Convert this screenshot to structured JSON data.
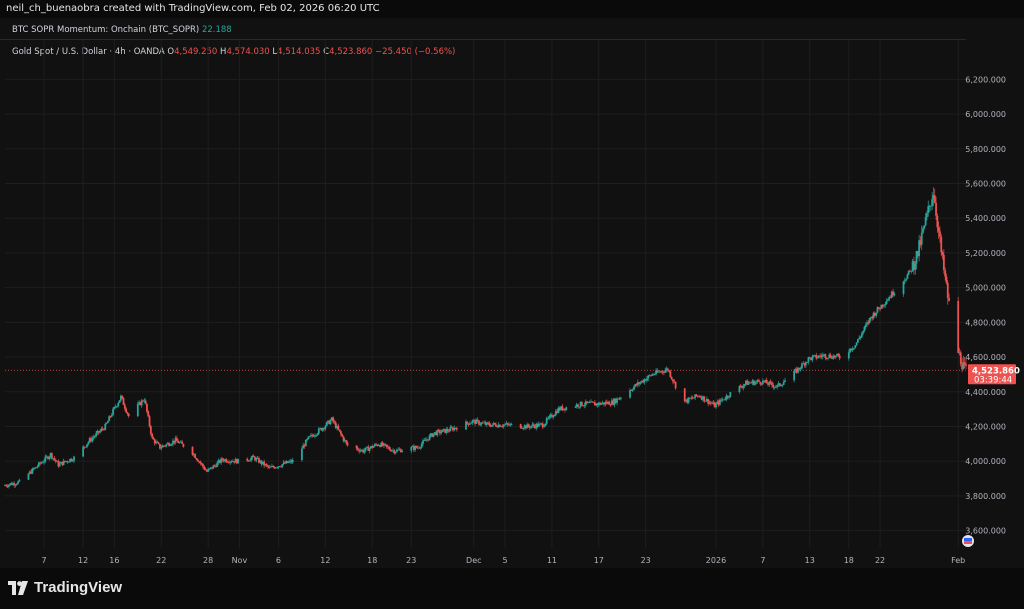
{
  "header": {
    "attribution": "neil_ch_buenaobra created with TradingView.com, Feb 02, 2026 06:20 UTC"
  },
  "indicator": {
    "name": "BTC SOPR Momentum: Onchain (BTC_SOPR)",
    "value": "22.188"
  },
  "symbol": {
    "name": "Gold Spot / U.S. Dollar · 4h · OANDA",
    "open_label": "O",
    "open": "4,549.250",
    "high_label": "H",
    "high": "4,574.030",
    "low_label": "L",
    "low": "4,514.035",
    "close_label": "C",
    "close": "4,523.860",
    "change": "−25.450 (−0.56%)"
  },
  "price_tag": {
    "price": "4,523.860",
    "countdown": "03:39:44"
  },
  "footer": {
    "brand": "TradingView"
  },
  "colors": {
    "up": "#26a69a",
    "down": "#ef5350",
    "background": "#111111",
    "grid": "#1e1e1e"
  },
  "chart_data": {
    "type": "candlestick",
    "interval": "4h",
    "y_range": [
      3500,
      6300
    ],
    "y_ticks": [
      "6,200.000",
      "6,000.000",
      "5,800.000",
      "5,600.000",
      "5,400.000",
      "5,200.000",
      "5,000.000",
      "4,800.000",
      "4,600.000",
      "4,400.000",
      "4,200.000",
      "4,000.000",
      "3,800.000",
      "3,600.000"
    ],
    "y_tick_values": [
      6200,
      6000,
      5800,
      5600,
      5400,
      5200,
      5000,
      4800,
      4600,
      4400,
      4200,
      4000,
      3800,
      3600
    ],
    "x_ticks": [
      "7",
      "12",
      "16",
      "22",
      "28",
      "Nov",
      "6",
      "12",
      "18",
      "23",
      "Dec",
      "5",
      "11",
      "17",
      "23",
      "2026",
      "7",
      "13",
      "18",
      "22",
      "Feb"
    ],
    "x_tick_dates": [
      "2025-10-07",
      "2025-10-12",
      "2025-10-16",
      "2025-10-22",
      "2025-10-28",
      "2025-11-01",
      "2025-11-06",
      "2025-11-12",
      "2025-11-18",
      "2025-11-23",
      "2025-12-01",
      "2025-12-05",
      "2025-12-11",
      "2025-12-17",
      "2025-12-23",
      "2026-01-01",
      "2026-01-07",
      "2026-01-13",
      "2026-01-18",
      "2026-01-22",
      "2026-02-01"
    ],
    "date_range": [
      "2025-10-02",
      "2026-02-02"
    ],
    "last_price": 4523.86,
    "trend": [
      [
        "2025-10-02",
        3860
      ],
      [
        "2025-10-04",
        3880
      ],
      [
        "2025-10-06",
        3960
      ],
      [
        "2025-10-08",
        4040
      ],
      [
        "2025-10-09",
        3980
      ],
      [
        "2025-10-11",
        4020
      ],
      [
        "2025-10-13",
        4120
      ],
      [
        "2025-10-14",
        4160
      ],
      [
        "2025-10-15",
        4200
      ],
      [
        "2025-10-16",
        4290
      ],
      [
        "2025-10-17",
        4370
      ],
      [
        "2025-10-18",
        4260
      ],
      [
        "2025-10-20",
        4360
      ],
      [
        "2025-10-21",
        4130
      ],
      [
        "2025-10-22",
        4080
      ],
      [
        "2025-10-24",
        4120
      ],
      [
        "2025-10-26",
        4060
      ],
      [
        "2025-10-28",
        3940
      ],
      [
        "2025-10-30",
        4010
      ],
      [
        "2025-11-01",
        4000
      ],
      [
        "2025-11-03",
        4020
      ],
      [
        "2025-11-05",
        3960
      ],
      [
        "2025-11-08",
        4000
      ],
      [
        "2025-11-10",
        4130
      ],
      [
        "2025-11-12",
        4200
      ],
      [
        "2025-11-13",
        4240
      ],
      [
        "2025-11-15",
        4090
      ],
      [
        "2025-11-17",
        4060
      ],
      [
        "2025-11-19",
        4100
      ],
      [
        "2025-11-21",
        4060
      ],
      [
        "2025-11-24",
        4080
      ],
      [
        "2025-11-26",
        4160
      ],
      [
        "2025-11-28",
        4180
      ],
      [
        "2025-12-01",
        4230
      ],
      [
        "2025-12-03",
        4210
      ],
      [
        "2025-12-05",
        4210
      ],
      [
        "2025-12-08",
        4200
      ],
      [
        "2025-12-10",
        4210
      ],
      [
        "2025-12-12",
        4300
      ],
      [
        "2025-12-15",
        4330
      ],
      [
        "2025-12-17",
        4330
      ],
      [
        "2025-12-19",
        4340
      ],
      [
        "2025-12-22",
        4440
      ],
      [
        "2025-12-24",
        4500
      ],
      [
        "2025-12-26",
        4530
      ],
      [
        "2025-12-28",
        4340
      ],
      [
        "2025-12-30",
        4380
      ],
      [
        "2026-01-01",
        4320
      ],
      [
        "2026-01-03",
        4390
      ],
      [
        "2026-01-05",
        4450
      ],
      [
        "2026-01-07",
        4460
      ],
      [
        "2026-01-09",
        4430
      ],
      [
        "2026-01-11",
        4500
      ],
      [
        "2026-01-13",
        4590
      ],
      [
        "2026-01-15",
        4610
      ],
      [
        "2026-01-17",
        4600
      ],
      [
        "2026-01-19",
        4670
      ],
      [
        "2026-01-21",
        4830
      ],
      [
        "2026-01-22",
        4880
      ],
      [
        "2026-01-24",
        4980
      ],
      [
        "2026-01-26",
        5090
      ],
      [
        "2026-01-27",
        5200
      ],
      [
        "2026-01-28",
        5380
      ],
      [
        "2026-01-29",
        5560
      ],
      [
        "2026-01-30",
        5200
      ],
      [
        "2026-01-31",
        4900
      ],
      [
        "2026-02-01",
        4650
      ],
      [
        "2026-02-02",
        4524
      ]
    ]
  }
}
